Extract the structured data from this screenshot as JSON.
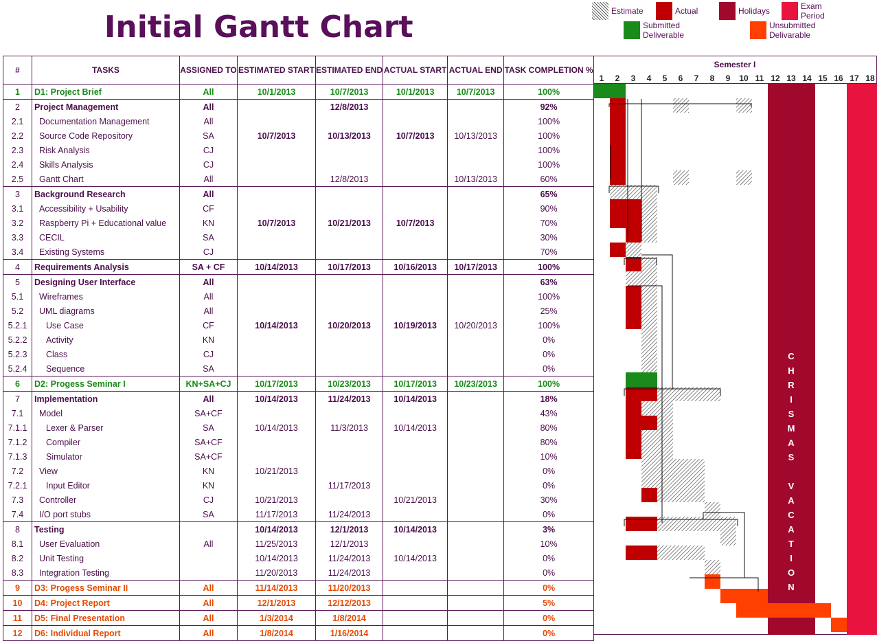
{
  "title": "Initial Gantt Chart",
  "legend": [
    {
      "label": "Estimate",
      "kind": "hatch"
    },
    {
      "label": "Actual",
      "color": "#c00000"
    },
    {
      "label": "Holidays",
      "color": "#a0082c"
    },
    {
      "label": "Exam Period",
      "color": "#e8133e"
    },
    {
      "label": "Submitted Deliverable",
      "color": "#1a8a1a"
    },
    {
      "label": "Unsubmitted Delivarable",
      "color": "#ff4000"
    }
  ],
  "headers": [
    "#",
    "TASKS",
    "ASSIGNED TO",
    "ESTIMATED START",
    "ESTIMATED END",
    "ACTUAL START",
    "ACTUAL END",
    "TASK COMPLETION %"
  ],
  "semester_label": "Semester I",
  "weeks": [
    "1",
    "2",
    "3",
    "4",
    "5",
    "6",
    "7",
    "8",
    "9",
    "10",
    "11",
    "12",
    "13",
    "14",
    "15",
    "16",
    "17",
    "18"
  ],
  "vacation_text": "CHRISMAS VACATION",
  "colors": {
    "text": "#4b0f4b",
    "green": "#1a8a1a",
    "orange": "#e64a00",
    "actual": "#c00000",
    "holiday": "#a0082c",
    "exam": "#e8133e",
    "unsubmitted": "#ff4000"
  },
  "rows": [
    {
      "id": "1",
      "task": "D1: Project Brief",
      "assigned": "All",
      "est_start": "10/1/2013",
      "est_end": "10/7/2013",
      "act_start": "10/1/2013",
      "act_end": "10/7/2013",
      "completion": "100%",
      "style": "green"
    },
    {
      "id": "2",
      "task": "Project Management",
      "assigned": "All",
      "est_start": "",
      "est_end": "12/8/2013",
      "act_start": "",
      "act_end": "",
      "completion": "92%",
      "style": "bold"
    },
    {
      "id": "2.1",
      "task": "Documentation Management",
      "assigned": "All",
      "est_start": "",
      "est_end": "",
      "act_start": "",
      "act_end": "",
      "completion": "100%",
      "style": "indent1"
    },
    {
      "id": "2.2",
      "task": "Source Code Repository",
      "assigned": "SA",
      "est_start": "10/7/2013",
      "est_end": "10/13/2013",
      "act_start": "10/7/2013",
      "act_end": "10/13/2013",
      "completion": "100%",
      "style": "indent1"
    },
    {
      "id": "2.3",
      "task": "Risk Analysis",
      "assigned": "CJ",
      "est_start": "",
      "est_end": "",
      "act_start": "",
      "act_end": "",
      "completion": "100%",
      "style": "indent1"
    },
    {
      "id": "2.4",
      "task": "Skills Analysis",
      "assigned": "CJ",
      "est_start": "",
      "est_end": "",
      "act_start": "",
      "act_end": "",
      "completion": "100%",
      "style": "indent1"
    },
    {
      "id": "2.5",
      "task": "Gantt Chart",
      "assigned": "All",
      "est_start": "",
      "est_end": "12/8/2013",
      "act_start": "",
      "act_end": "10/13/2013",
      "completion": "60%",
      "style": "indent1"
    },
    {
      "id": "3",
      "task": "Background Research",
      "assigned": "All",
      "est_start": "",
      "est_end": "",
      "act_start": "",
      "act_end": "",
      "completion": "65%",
      "style": "bold"
    },
    {
      "id": "3.1",
      "task": "Accessibility + Usability",
      "assigned": "CF",
      "est_start": "",
      "est_end": "",
      "act_start": "",
      "act_end": "",
      "completion": "90%",
      "style": "indent1"
    },
    {
      "id": "3.2",
      "task": "Raspberry Pi + Educational value",
      "assigned": "KN",
      "est_start": "10/7/2013",
      "est_end": "10/21/2013",
      "act_start": "10/7/2013",
      "act_end": "",
      "completion": "70%",
      "style": "indent1"
    },
    {
      "id": "3.3",
      "task": "CECIL",
      "assigned": "SA",
      "est_start": "",
      "est_end": "",
      "act_start": "",
      "act_end": "",
      "completion": "30%",
      "style": "indent1"
    },
    {
      "id": "3.4",
      "task": "Existing Systems",
      "assigned": "CJ",
      "est_start": "",
      "est_end": "",
      "act_start": "",
      "act_end": "",
      "completion": "70%",
      "style": "indent1"
    },
    {
      "id": "4",
      "task": "Requirements Analysis",
      "assigned": "SA + CF",
      "est_start": "10/14/2013",
      "est_end": "10/17/2013",
      "act_start": "10/16/2013",
      "act_end": "10/17/2013",
      "completion": "100%",
      "style": "bold"
    },
    {
      "id": "5",
      "task": "Designing User Interface",
      "assigned": "All",
      "est_start": "",
      "est_end": "",
      "act_start": "",
      "act_end": "",
      "completion": "63%",
      "style": "bold"
    },
    {
      "id": "5.1",
      "task": "Wireframes",
      "assigned": "All",
      "est_start": "",
      "est_end": "",
      "act_start": "",
      "act_end": "",
      "completion": "100%",
      "style": "indent1"
    },
    {
      "id": "5.2",
      "task": "UML diagrams",
      "assigned": "All",
      "est_start": "",
      "est_end": "",
      "act_start": "",
      "act_end": "",
      "completion": "25%",
      "style": "indent1"
    },
    {
      "id": "5.2.1",
      "task": "Use Case",
      "assigned": "CF",
      "est_start": "10/14/2013",
      "est_end": "10/20/2013",
      "act_start": "10/19/2013",
      "act_end": "10/20/2013",
      "completion": "100%",
      "style": "indent2"
    },
    {
      "id": "5.2.2",
      "task": "Activity",
      "assigned": "KN",
      "est_start": "",
      "est_end": "",
      "act_start": "",
      "act_end": "",
      "completion": "0%",
      "style": "indent2"
    },
    {
      "id": "5.2.3",
      "task": "Class",
      "assigned": "CJ",
      "est_start": "",
      "est_end": "",
      "act_start": "",
      "act_end": "",
      "completion": "0%",
      "style": "indent2"
    },
    {
      "id": "5.2.4",
      "task": "Sequence",
      "assigned": "SA",
      "est_start": "",
      "est_end": "",
      "act_start": "",
      "act_end": "",
      "completion": "0%",
      "style": "indent2"
    },
    {
      "id": "6",
      "task": "D2: Progess Seminar I",
      "assigned": "KN+SA+CJ",
      "est_start": "10/17/2013",
      "est_end": "10/23/2013",
      "act_start": "10/17/2013",
      "act_end": "10/23/2013",
      "completion": "100%",
      "style": "green"
    },
    {
      "id": "7",
      "task": "Implementation",
      "assigned": "All",
      "est_start": "10/14/2013",
      "est_end": "11/24/2013",
      "act_start": "10/14/2013",
      "act_end": "",
      "completion": "18%",
      "style": "bold"
    },
    {
      "id": "7.1",
      "task": "Model",
      "assigned": "SA+CF",
      "est_start": "",
      "est_end": "",
      "act_start": "",
      "act_end": "",
      "completion": "43%",
      "style": "indent1"
    },
    {
      "id": "7.1.1",
      "task": "Lexer & Parser",
      "assigned": "SA",
      "est_start": "10/14/2013",
      "est_end": "11/3/2013",
      "act_start": "10/14/2013",
      "act_end": "",
      "completion": "80%",
      "style": "indent2"
    },
    {
      "id": "7.1.2",
      "task": "Compiler",
      "assigned": "SA+CF",
      "est_start": "",
      "est_end": "",
      "act_start": "",
      "act_end": "",
      "completion": "80%",
      "style": "indent2"
    },
    {
      "id": "7.1.3",
      "task": "Simulator",
      "assigned": "SA+CF",
      "est_start": "",
      "est_end": "",
      "act_start": "",
      "act_end": "",
      "completion": "10%",
      "style": "indent2"
    },
    {
      "id": "7.2",
      "task": "View",
      "assigned": "KN",
      "est_start": "10/21/2013",
      "est_end": "",
      "act_start": "",
      "act_end": "",
      "completion": "0%",
      "style": "indent1"
    },
    {
      "id": "7.2.1",
      "task": "Input Editor",
      "assigned": "KN",
      "est_start": "",
      "est_end": "11/17/2013",
      "act_start": "",
      "act_end": "",
      "completion": "0%",
      "style": "indent2"
    },
    {
      "id": "7.3",
      "task": "Controller",
      "assigned": "CJ",
      "est_start": "10/21/2013",
      "est_end": "",
      "act_start": "10/21/2013",
      "act_end": "",
      "completion": "30%",
      "style": "indent1"
    },
    {
      "id": "7.4",
      "task": "I/O port stubs",
      "assigned": "SA",
      "est_start": "11/17/2013",
      "est_end": "11/24/2013",
      "act_start": "",
      "act_end": "",
      "completion": "0%",
      "style": "indent1"
    },
    {
      "id": "8",
      "task": "Testing",
      "assigned": "",
      "est_start": "10/14/2013",
      "est_end": "12/1/2013",
      "act_start": "10/14/2013",
      "act_end": "",
      "completion": "3%",
      "style": "bold"
    },
    {
      "id": "8.1",
      "task": "User Evaluation",
      "assigned": "All",
      "est_start": "11/25/2013",
      "est_end": "12/1/2013",
      "act_start": "",
      "act_end": "",
      "completion": "10%",
      "style": "indent1"
    },
    {
      "id": "8.2",
      "task": "Unit Testing",
      "assigned": "",
      "est_start": "10/14/2013",
      "est_end": "11/24/2013",
      "act_start": "10/14/2013",
      "act_end": "",
      "completion": "0%",
      "style": "indent1"
    },
    {
      "id": "8.3",
      "task": "Integration Testing",
      "assigned": "",
      "est_start": "11/20/2013",
      "est_end": "11/24/2013",
      "act_start": "",
      "act_end": "",
      "completion": "0%",
      "style": "indent1"
    },
    {
      "id": "9",
      "task": "D3: Progess Seminar II",
      "assigned": "All",
      "est_start": "11/14/2013",
      "est_end": "11/20/2013",
      "act_start": "",
      "act_end": "",
      "completion": "0%",
      "style": "orange"
    },
    {
      "id": "10",
      "task": "D4: Project Report",
      "assigned": "All",
      "est_start": "12/1/2013",
      "est_end": "12/12/2013",
      "act_start": "",
      "act_end": "",
      "completion": "5%",
      "style": "orange"
    },
    {
      "id": "11",
      "task": "D5: Final Presentation",
      "assigned": "All",
      "est_start": "1/3/2014",
      "est_end": "1/8/2014",
      "act_start": "",
      "act_end": "",
      "completion": "0%",
      "style": "orange"
    },
    {
      "id": "12",
      "task": "D6: Individual Report",
      "assigned": "All",
      "est_start": "1/8/2014",
      "est_end": "1/16/2014",
      "act_start": "",
      "act_end": "",
      "completion": "0%",
      "style": "orange"
    }
  ],
  "chart_data": {
    "type": "gantt",
    "title": "Initial Gantt Chart",
    "xlabel": "Semester I",
    "x_ticks": [
      "1",
      "2",
      "3",
      "4",
      "5",
      "6",
      "7",
      "8",
      "9",
      "10",
      "11",
      "12",
      "13",
      "14",
      "15",
      "16",
      "17",
      "18"
    ],
    "holidays_weeks": [
      12,
      14
    ],
    "exam_weeks": [
      17,
      18
    ],
    "bars": [
      {
        "row": 0,
        "kind": "submitted",
        "start": 1,
        "end": 3
      },
      {
        "row": 1,
        "kind": "actual",
        "start": 2,
        "end": 3
      },
      {
        "row": 1,
        "kind": "estimate",
        "start": 6,
        "end": 7
      },
      {
        "row": 1,
        "kind": "estimate",
        "start": 10,
        "end": 11
      },
      {
        "row": 2,
        "kind": "actual",
        "start": 2,
        "end": 3
      },
      {
        "row": 3,
        "kind": "actual",
        "start": 2,
        "end": 3
      },
      {
        "row": 4,
        "kind": "actual",
        "start": 2,
        "end": 3
      },
      {
        "row": 5,
        "kind": "actual",
        "start": 2,
        "end": 3
      },
      {
        "row": 6,
        "kind": "actual",
        "start": 2,
        "end": 3
      },
      {
        "row": 6,
        "kind": "estimate",
        "start": 6,
        "end": 7
      },
      {
        "row": 6,
        "kind": "estimate",
        "start": 10,
        "end": 11
      },
      {
        "row": 7,
        "kind": "estimate",
        "start": 2,
        "end": 5
      },
      {
        "row": 8,
        "kind": "actual",
        "start": 2,
        "end": 4
      },
      {
        "row": 8,
        "kind": "estimate",
        "start": 4,
        "end": 5
      },
      {
        "row": 9,
        "kind": "actual",
        "start": 2,
        "end": 4
      },
      {
        "row": 9,
        "kind": "estimate",
        "start": 4,
        "end": 5
      },
      {
        "row": 10,
        "kind": "actual",
        "start": 3,
        "end": 4
      },
      {
        "row": 10,
        "kind": "estimate",
        "start": 4,
        "end": 5
      },
      {
        "row": 11,
        "kind": "actual",
        "start": 2,
        "end": 3
      },
      {
        "row": 11,
        "kind": "estimate",
        "start": 3,
        "end": 4
      },
      {
        "row": 12,
        "kind": "actual",
        "start": 3,
        "end": 4
      },
      {
        "row": 12,
        "kind": "estimate",
        "start": 4,
        "end": 5
      },
      {
        "row": 13,
        "kind": "estimate",
        "start": 3,
        "end": 5
      },
      {
        "row": 14,
        "kind": "actual",
        "start": 3,
        "end": 4
      },
      {
        "row": 14,
        "kind": "estimate",
        "start": 4,
        "end": 5
      },
      {
        "row": 15,
        "kind": "actual",
        "start": 3,
        "end": 4
      },
      {
        "row": 15,
        "kind": "estimate",
        "start": 4,
        "end": 5
      },
      {
        "row": 16,
        "kind": "actual",
        "start": 3,
        "end": 4
      },
      {
        "row": 16,
        "kind": "estimate",
        "start": 4,
        "end": 5
      },
      {
        "row": 17,
        "kind": "estimate",
        "start": 4,
        "end": 5
      },
      {
        "row": 18,
        "kind": "estimate",
        "start": 4,
        "end": 5
      },
      {
        "row": 19,
        "kind": "estimate",
        "start": 4,
        "end": 5
      },
      {
        "row": 20,
        "kind": "submitted",
        "start": 3,
        "end": 5
      },
      {
        "row": 21,
        "kind": "actual",
        "start": 3,
        "end": 5
      },
      {
        "row": 21,
        "kind": "estimate",
        "start": 5,
        "end": 9
      },
      {
        "row": 22,
        "kind": "actual",
        "start": 3,
        "end": 4
      },
      {
        "row": 22,
        "kind": "estimate",
        "start": 4,
        "end": 6
      },
      {
        "row": 23,
        "kind": "actual",
        "start": 3,
        "end": 5
      },
      {
        "row": 23,
        "kind": "estimate",
        "start": 5,
        "end": 6
      },
      {
        "row": 24,
        "kind": "actual",
        "start": 3,
        "end": 4
      },
      {
        "row": 24,
        "kind": "estimate",
        "start": 4,
        "end": 6
      },
      {
        "row": 25,
        "kind": "actual",
        "start": 3,
        "end": 4
      },
      {
        "row": 25,
        "kind": "estimate",
        "start": 4,
        "end": 6
      },
      {
        "row": 26,
        "kind": "estimate",
        "start": 4,
        "end": 8
      },
      {
        "row": 27,
        "kind": "estimate",
        "start": 4,
        "end": 8
      },
      {
        "row": 28,
        "kind": "actual",
        "start": 4,
        "end": 5
      },
      {
        "row": 28,
        "kind": "estimate",
        "start": 5,
        "end": 8
      },
      {
        "row": 29,
        "kind": "estimate",
        "start": 8,
        "end": 9
      },
      {
        "row": 30,
        "kind": "actual",
        "start": 3,
        "end": 5
      },
      {
        "row": 30,
        "kind": "estimate",
        "start": 5,
        "end": 10
      },
      {
        "row": 31,
        "kind": "estimate",
        "start": 9,
        "end": 10
      },
      {
        "row": 32,
        "kind": "actual",
        "start": 3,
        "end": 5
      },
      {
        "row": 32,
        "kind": "estimate",
        "start": 5,
        "end": 8
      },
      {
        "row": 33,
        "kind": "estimate",
        "start": 8,
        "end": 9
      },
      {
        "row": 34,
        "kind": "unsubmitted",
        "start": 8,
        "end": 9
      },
      {
        "row": 35,
        "kind": "unsubmitted",
        "start": 9,
        "end": 12
      },
      {
        "row": 36,
        "kind": "unsubmitted",
        "start": 10,
        "end": 16
      },
      {
        "row": 37,
        "kind": "unsubmitted",
        "start": 16,
        "end": 17
      }
    ]
  }
}
